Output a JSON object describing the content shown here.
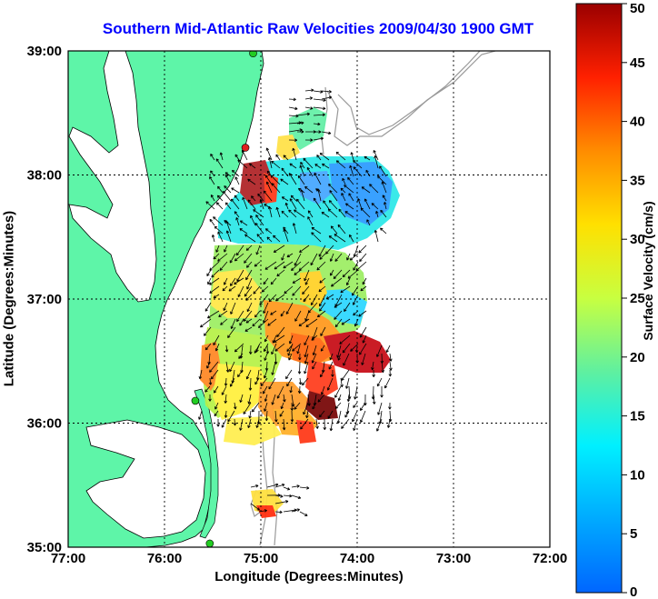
{
  "title": "Southern Mid-Atlantic Raw Velocities 2009/04/30 1900 GMT",
  "xlabel": "Longitude (Degrees:Minutes)",
  "ylabel": "Latitude (Degrees:Minutes)",
  "colorbar_label": "Surface Velocity (cm/s)",
  "colors": {
    "land": "#5ef5a8",
    "water": "#ffffff",
    "title": "#0000ff",
    "bathymetry": "#999999",
    "station": "#22cc22",
    "station_alt": "#e02020"
  },
  "chart_data": {
    "type": "map",
    "title": "Southern Mid-Atlantic Raw Velocities 2009/04/30 1900 GMT",
    "xlabel": "Longitude (Degrees:Minutes)",
    "ylabel": "Latitude (Degrees:Minutes)",
    "xlim": [
      -77,
      -72
    ],
    "ylim": [
      35,
      39
    ],
    "x_ticks": [
      -77,
      -76,
      -75,
      -74,
      -73,
      -72
    ],
    "x_tick_labels": [
      "77:00",
      "76:00",
      "75:00",
      "74:00",
      "73:00",
      "72:00"
    ],
    "y_ticks": [
      35,
      36,
      37,
      38,
      39
    ],
    "y_tick_labels": [
      "35:00",
      "36:00",
      "37:00",
      "38:00",
      "39:00"
    ],
    "grid": true,
    "colorbar": {
      "label": "Surface Velocity (cm/s)",
      "range": [
        0,
        50
      ],
      "ticks": [
        0,
        5,
        10,
        15,
        20,
        25,
        30,
        35,
        40,
        45,
        50
      ]
    },
    "stations": [
      {
        "lon": -75.08,
        "lat": 38.98,
        "color": "green"
      },
      {
        "lon": -75.16,
        "lat": 38.22,
        "color": "red"
      },
      {
        "lon": -75.68,
        "lat": 36.18,
        "color": "green"
      },
      {
        "lon": -75.53,
        "lat": 35.03,
        "color": "green"
      }
    ]
  }
}
